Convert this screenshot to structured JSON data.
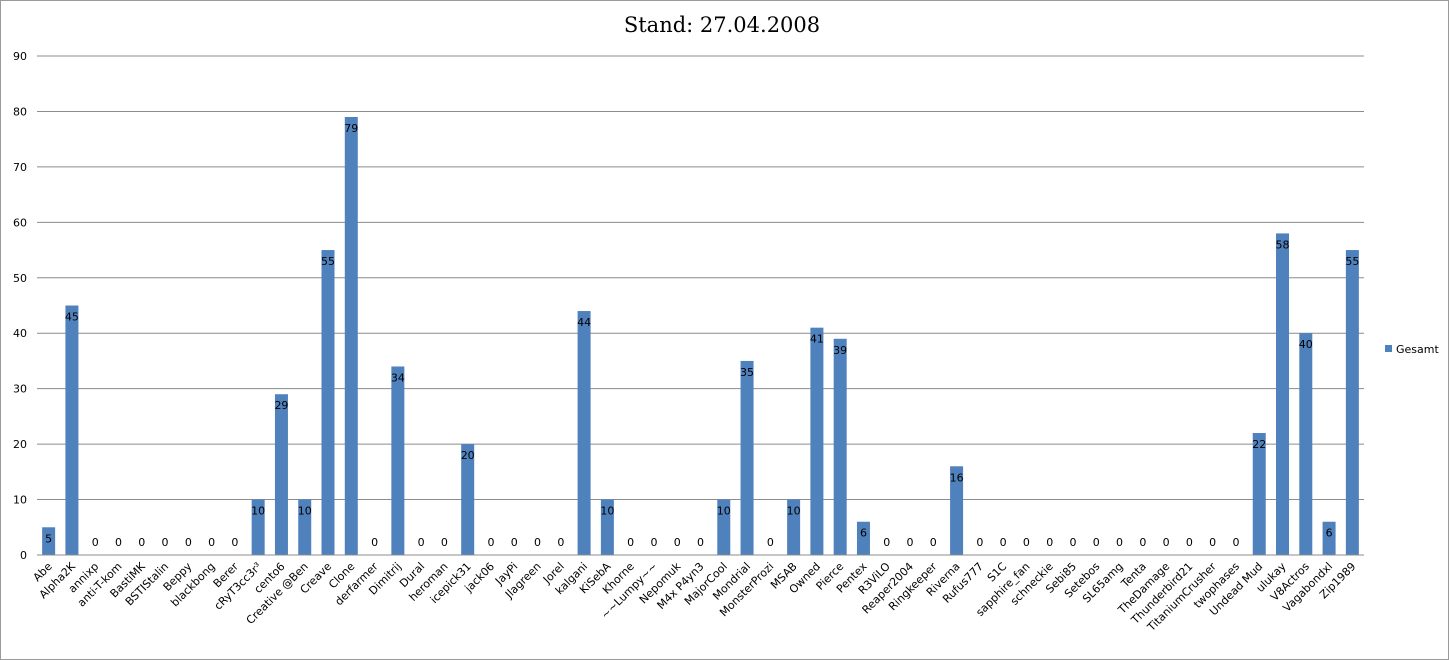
{
  "chart_data": {
    "type": "bar",
    "title": "Stand: 27.04.2008",
    "xlabel": "",
    "ylabel": "",
    "ylim": [
      0,
      90
    ],
    "yticks": [
      0,
      10,
      20,
      30,
      40,
      50,
      60,
      70,
      80,
      90
    ],
    "grid": true,
    "legend_position": "right",
    "bar_color": "#4f81bd",
    "categories": [
      "Abe",
      "Alpha2K",
      "annixp",
      "anti-T-kom",
      "BastiMK",
      "BSTIStalin",
      "Beppy",
      "blackbong",
      "Berer",
      "cRyT3cc3r³",
      "cento6",
      "Creative @Ben",
      "Creave",
      "Clone",
      "derfarmer",
      "Dimitrij",
      "Dural",
      "heroman",
      "icepick31",
      "jack06",
      "JayPi",
      "Jlagreen",
      "Jorel",
      "kalgani",
      "KiSebA",
      "Khorne",
      "~~Lumpy~~",
      "Nepomuk",
      "M4x P4yn3",
      "MajorCool",
      "Mondrial",
      "MonsterProzi",
      "MSAB",
      "Owned",
      "Pierce",
      "Pentex",
      "R3ViLO",
      "Reaper2004",
      "Ringkeeper",
      "Riverna",
      "Rufus777",
      "S1C",
      "sapphire_fan",
      "schneckie",
      "Sebi85",
      "Setebos",
      "SL65amg",
      "Tenta",
      "TheDamage",
      "Thunderbird21",
      "TitaniumCrusher",
      "twophases",
      "Undead Mud",
      "ulukay",
      "V8Actros",
      "Vagabondxl",
      "Zip1989"
    ],
    "series": [
      {
        "name": "Gesamt",
        "values": [
          5,
          45,
          0,
          0,
          0,
          0,
          0,
          0,
          0,
          10,
          29,
          10,
          55,
          79,
          0,
          34,
          0,
          0,
          20,
          0,
          0,
          0,
          0,
          44,
          10,
          0,
          0,
          0,
          0,
          10,
          35,
          0,
          10,
          41,
          39,
          6,
          0,
          0,
          0,
          16,
          0,
          0,
          0,
          0,
          0,
          0,
          0,
          0,
          0,
          0,
          0,
          0,
          22,
          58,
          40,
          6,
          55
        ]
      }
    ]
  }
}
